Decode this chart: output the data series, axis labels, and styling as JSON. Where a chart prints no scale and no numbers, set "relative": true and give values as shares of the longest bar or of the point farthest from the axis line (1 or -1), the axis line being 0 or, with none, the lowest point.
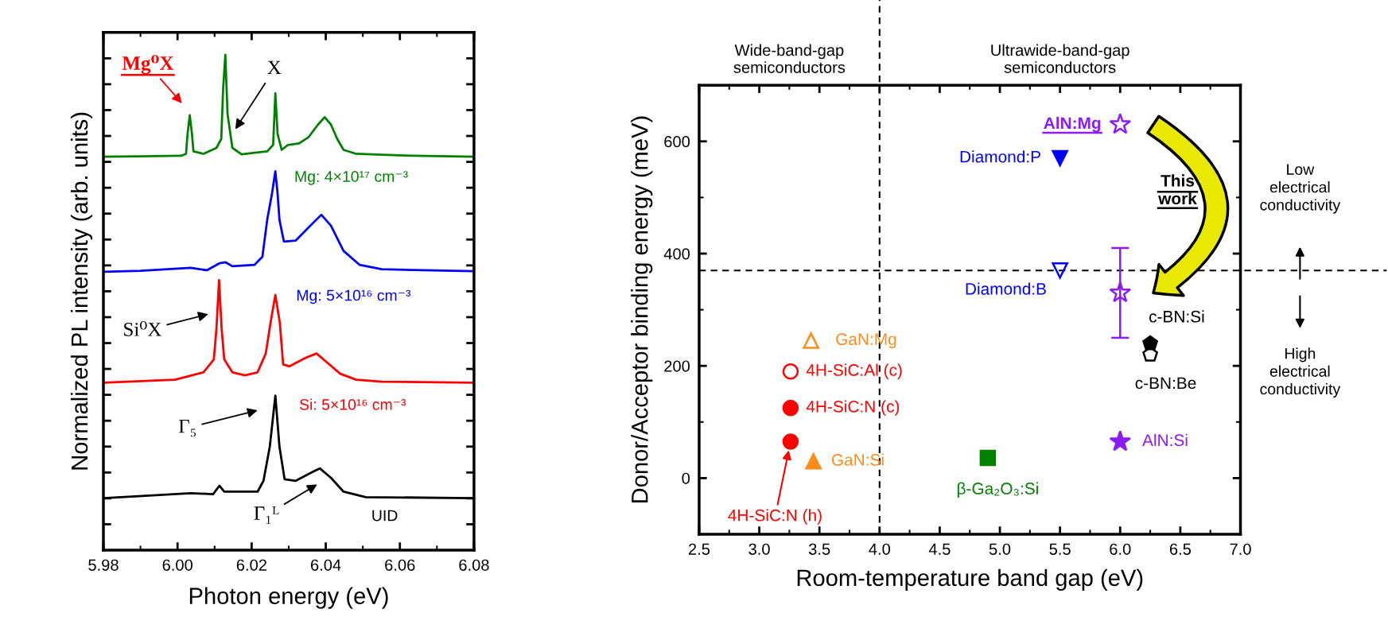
{
  "chart_data": [
    {
      "type": "line",
      "relative": true,
      "xlabel": "Photon energy (eV)",
      "ylabel": "Normalized PL intensity (arb. units)",
      "xlim": [
        5.98,
        6.08
      ],
      "xticks": [
        5.98,
        {
          "value": 6.0,
          "label": "6.00"
        },
        6.02,
        6.04,
        6.06,
        6.08
      ],
      "tick_labels": "x",
      "series": [
        {
          "name": "Mg: 4×10¹⁷ cm⁻³",
          "color": "#008000",
          "x": [
            5.98,
            5.99,
            6.001,
            6.0023,
            6.0027,
            6.0033,
            6.0039,
            6.0043,
            6.007,
            6.0105,
            6.0118,
            6.0123,
            6.0129,
            6.0135,
            6.0148,
            6.0173,
            6.0208,
            6.0242,
            6.0258,
            6.0264,
            6.027,
            6.0281,
            6.0298,
            6.0328,
            6.0354,
            6.0379,
            6.0397,
            6.0414,
            6.0431,
            6.0448,
            6.0482,
            6.0551,
            6.0637,
            6.08
          ],
          "values": [
            0.794,
            0.795,
            0.796,
            0.8,
            0.84,
            0.878,
            0.84,
            0.805,
            0.8,
            0.812,
            0.83,
            0.93,
            1.0,
            0.88,
            0.812,
            0.799,
            0.802,
            0.805,
            0.818,
            0.922,
            0.84,
            0.808,
            0.818,
            0.821,
            0.834,
            0.859,
            0.874,
            0.859,
            0.83,
            0.808,
            0.8,
            0.798,
            0.796,
            0.794
          ]
        },
        {
          "name": "Mg: 5×10¹⁶ cm⁻³",
          "color": "#0000ff",
          "x": [
            5.98,
            5.99,
            6.0036,
            6.0079,
            6.0113,
            6.013,
            6.0148,
            6.0208,
            6.0229,
            6.0242,
            6.0255,
            6.0264,
            6.027,
            6.0275,
            6.0287,
            6.0319,
            6.0349,
            6.0388,
            6.0414,
            6.0448,
            6.0491,
            6.0551,
            6.08
          ],
          "values": [
            0.562,
            0.564,
            0.57,
            0.565,
            0.579,
            0.581,
            0.573,
            0.576,
            0.592,
            0.667,
            0.72,
            0.765,
            0.72,
            0.667,
            0.623,
            0.625,
            0.648,
            0.677,
            0.655,
            0.604,
            0.576,
            0.567,
            0.563
          ]
        },
        {
          "name": "Si: 5×10¹⁶ cm⁻³",
          "color": "#ff0000",
          "x": [
            5.98,
            5.9993,
            6.007,
            6.0098,
            6.0105,
            6.0112,
            6.0119,
            6.0126,
            6.0148,
            6.0182,
            6.0216,
            6.0238,
            6.0251,
            6.0264,
            6.0276,
            6.0285,
            6.0302,
            6.0345,
            6.0375,
            6.0405,
            6.0439,
            6.0482,
            6.0551,
            6.08
          ],
          "values": [
            0.338,
            0.344,
            0.359,
            0.385,
            0.447,
            0.545,
            0.447,
            0.385,
            0.359,
            0.353,
            0.359,
            0.397,
            0.459,
            0.515,
            0.459,
            0.375,
            0.371,
            0.388,
            0.397,
            0.378,
            0.356,
            0.344,
            0.34,
            0.338
          ]
        },
        {
          "name": "UID",
          "color": "#000000",
          "x": [
            5.98,
            6.0036,
            6.0096,
            6.0113,
            6.0126,
            6.0216,
            6.0232,
            6.0249,
            6.0264,
            6.0275,
            6.0289,
            6.0319,
            6.0367,
            6.0384,
            6.0414,
            6.0448,
            6.0508,
            6.08
          ],
          "values": [
            0.105,
            0.115,
            0.113,
            0.13,
            0.118,
            0.118,
            0.14,
            0.209,
            0.312,
            0.209,
            0.143,
            0.14,
            0.159,
            0.165,
            0.146,
            0.118,
            0.107,
            0.105
          ]
        }
      ],
      "annotations": [
        "Mg⁰X",
        "X",
        "Si⁰X",
        "Γ₅",
        "Γ₁ᴸ"
      ]
    },
    {
      "type": "scatter",
      "xlabel": "Room-temperature band gap (eV)",
      "ylabel": "Donor/Acceptor binding energy (meV)",
      "xlim": [
        2.5,
        7.0
      ],
      "ylim": [
        -100,
        700
      ],
      "xticks": [
        2.5,
        {
          "value": 3,
          "label": "3.0"
        },
        3.5,
        {
          "value": 4,
          "label": "4.0"
        },
        4.5,
        {
          "value": 5,
          "label": "5.0"
        },
        5.5,
        {
          "value": 6,
          "label": "6.0"
        },
        6.5,
        {
          "value": 7,
          "label": "7.0"
        }
      ],
      "yticks": [
        0,
        200,
        400,
        600
      ],
      "ref_lines": [
        {
          "axis": "x",
          "value": 4.0,
          "line_style": "dashed",
          "color": "#000000"
        },
        {
          "axis": "y",
          "value": 370,
          "line_style": "dashed",
          "color": "#000000"
        }
      ],
      "series": [
        {
          "name": "AlN:Mg",
          "color": "#8b1cf7",
          "x": [
            6.0
          ],
          "values": [
            630
          ],
          "marker": "star"
        },
        {
          "color": "#8b1cf7",
          "x": [
            6.0
          ],
          "values": [
            330
          ],
          "errors": [
            [
              250,
              410
            ]
          ],
          "marker": "star"
        },
        {
          "name": "Diamond:P",
          "color": "#0000ff",
          "x": [
            5.5
          ],
          "values": [
            570
          ],
          "marker": "triangle_down"
        },
        {
          "name": "Diamond:B",
          "color": "#0000ff",
          "x": [
            5.5
          ],
          "values": [
            370
          ],
          "marker": "triangle_down"
        },
        {
          "name": "c-BN:Si",
          "color": "#000000",
          "x": [
            6.25
          ],
          "values": [
            240
          ]
        },
        {
          "name": "c-BN:Be",
          "color": "#000000",
          "x": [
            6.25
          ],
          "values": [
            220
          ]
        },
        {
          "name": "AlN:Si",
          "color": "#8b1cf7",
          "x": [
            6.0
          ],
          "values": [
            65
          ],
          "marker": "star"
        },
        {
          "name": "GaN:Mg",
          "color": "#ff8c1a",
          "x": [
            3.43
          ],
          "values": [
            245
          ],
          "marker": "triangle"
        },
        {
          "name": "4H-SiC:Al (c)",
          "color": "#ff0000",
          "x": [
            3.26
          ],
          "values": [
            190
          ],
          "marker": "circle"
        },
        {
          "name": "4H-SiC:N (c)",
          "color": "#ff0000",
          "x": [
            3.26
          ],
          "values": [
            125
          ],
          "marker": "circle"
        },
        {
          "name": "4H-SiC:N (h)",
          "color": "#ff0000",
          "x": [
            3.26
          ],
          "values": [
            65
          ],
          "marker": "circle"
        },
        {
          "name": "GaN:Si",
          "color": "#ff8c1a",
          "x": [
            3.45
          ],
          "values": [
            30
          ],
          "marker": "triangle"
        },
        {
          "name": "β-Ga₂O₃:Si",
          "color": "#008000",
          "x": [
            4.9
          ],
          "values": [
            36
          ],
          "marker": "square"
        }
      ],
      "annotations": [
        "Wide-band-gap\nsemiconductors",
        "Ultrawide-band-gap\nsemiconductors",
        "This\nwork",
        "Low\nelectrical\nconductivity",
        "High\nelectrical\nconductivity"
      ]
    }
  ]
}
